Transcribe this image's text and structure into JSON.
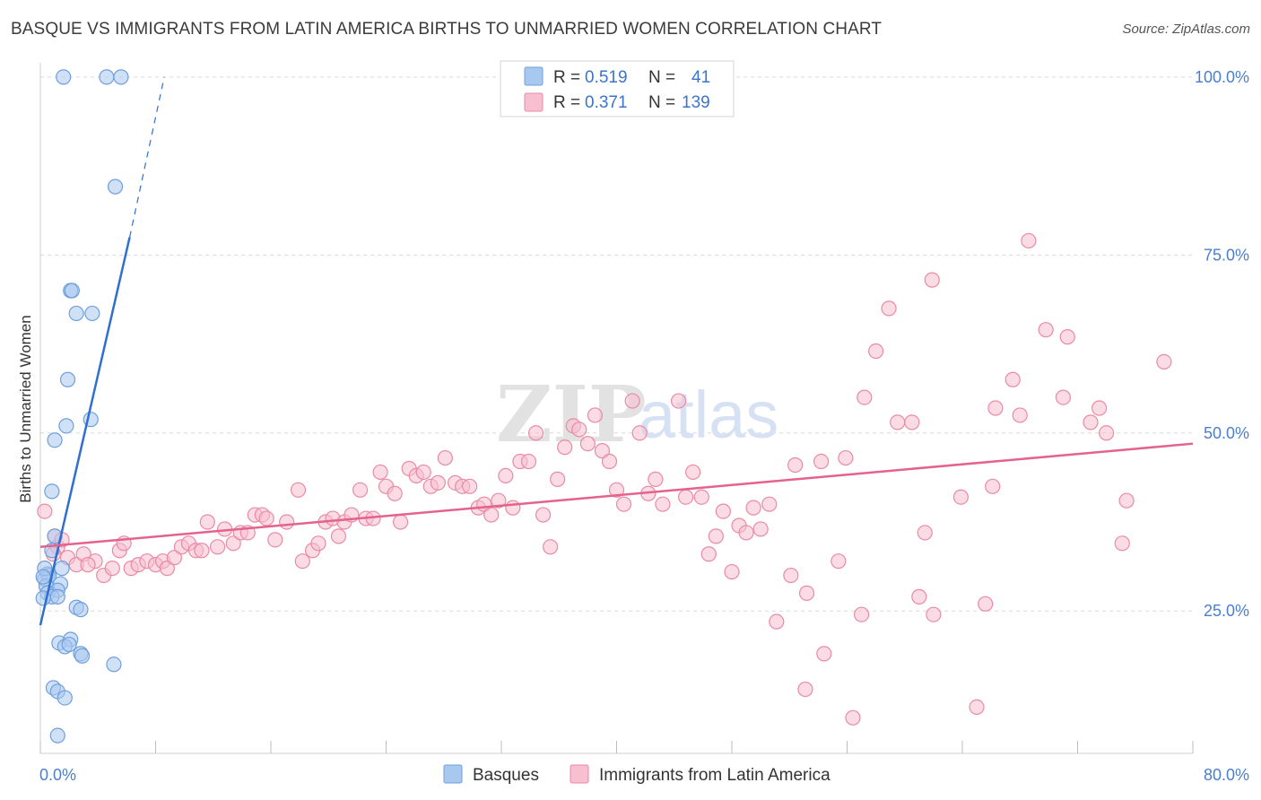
{
  "header": {
    "title": "BASQUE VS IMMIGRANTS FROM LATIN AMERICA BIRTHS TO UNMARRIED WOMEN CORRELATION CHART",
    "source": "Source: ZipAtlas.com"
  },
  "watermark": {
    "zip": "ZIP",
    "atlas": "atlas"
  },
  "colors": {
    "blue_fill": "#a9c8f0",
    "blue_stroke": "#6f9fdc",
    "blue_line": "#2f6fd0",
    "pink_fill": "#f7bfd0",
    "pink_stroke": "#e98aa8",
    "pink_line": "#e4628e",
    "grid": "#d9d9d9",
    "axis_label": "#4a7fd0"
  },
  "legend": {
    "rows": [
      {
        "r_label": "R = ",
        "r_value": "0.519",
        "n_label": "N = ",
        "n_value": "41"
      },
      {
        "r_label": "R = ",
        "r_value": "0.371",
        "n_label": "N = ",
        "n_value": "139"
      }
    ]
  },
  "chart_data": {
    "type": "scatter",
    "title": "BASQUE VS IMMIGRANTS FROM LATIN AMERICA BIRTHS TO UNMARRIED WOMEN CORRELATION CHART",
    "xlabel": "",
    "ylabel": "Births to Unmarried Women",
    "xlim": [
      0,
      80
    ],
    "ylim": [
      5,
      102
    ],
    "x_tick_labels": [
      "0.0%",
      "80.0%"
    ],
    "y_ticks": [
      25,
      50,
      75,
      100
    ],
    "y_tick_labels": [
      "25.0%",
      "50.0%",
      "75.0%",
      "100.0%"
    ],
    "grid": true,
    "legend_position": "top-center",
    "series": [
      {
        "name": "Basques",
        "r": 0.519,
        "n": 41,
        "trend": {
          "x_start": 0.0,
          "y_start": 23.0,
          "x_solid_end": 6.2,
          "y_solid_end": 77.5,
          "x_dash_end": 8.6,
          "y_dash_end": 100.0
        },
        "points": [
          [
            1.6,
            100.0
          ],
          [
            4.6,
            100.0
          ],
          [
            5.6,
            100.0
          ],
          [
            5.2,
            84.6
          ],
          [
            2.1,
            70.0
          ],
          [
            2.2,
            70.0
          ],
          [
            2.5,
            66.8
          ],
          [
            3.6,
            66.8
          ],
          [
            1.9,
            57.5
          ],
          [
            3.5,
            51.9
          ],
          [
            1.8,
            51.0
          ],
          [
            1.0,
            49.0
          ],
          [
            0.8,
            41.8
          ],
          [
            1.0,
            35.5
          ],
          [
            0.8,
            33.5
          ],
          [
            1.5,
            31.0
          ],
          [
            0.5,
            30.2
          ],
          [
            0.6,
            30.0
          ],
          [
            0.3,
            29.5
          ],
          [
            0.4,
            28.5
          ],
          [
            1.4,
            28.8
          ],
          [
            1.2,
            27.9
          ],
          [
            0.5,
            27.5
          ],
          [
            0.8,
            27.0
          ],
          [
            1.2,
            27.0
          ],
          [
            0.2,
            26.8
          ],
          [
            2.5,
            25.5
          ],
          [
            2.8,
            25.2
          ],
          [
            1.3,
            20.5
          ],
          [
            2.1,
            21.0
          ],
          [
            1.7,
            20.0
          ],
          [
            2.0,
            20.3
          ],
          [
            2.8,
            19.0
          ],
          [
            2.9,
            18.7
          ],
          [
            5.1,
            17.5
          ],
          [
            0.9,
            14.2
          ],
          [
            1.2,
            13.7
          ],
          [
            1.7,
            12.8
          ],
          [
            1.2,
            7.5
          ],
          [
            0.3,
            31.0
          ],
          [
            0.2,
            29.8
          ]
        ]
      },
      {
        "name": "Immigrants from Latin America",
        "r": 0.371,
        "n": 139,
        "trend": {
          "x_start": 0.0,
          "y_start": 34.0,
          "x_end": 80.0,
          "y_end": 48.5
        },
        "points": [
          [
            0.3,
            39.0
          ],
          [
            1.0,
            35.5
          ],
          [
            1.2,
            34.0
          ],
          [
            1.9,
            32.5
          ],
          [
            2.5,
            31.5
          ],
          [
            3.0,
            33.0
          ],
          [
            3.8,
            32.0
          ],
          [
            4.4,
            30.0
          ],
          [
            5.0,
            31.0
          ],
          [
            5.5,
            33.5
          ],
          [
            5.8,
            34.5
          ],
          [
            6.3,
            31.0
          ],
          [
            6.8,
            31.5
          ],
          [
            7.4,
            32.0
          ],
          [
            8.0,
            31.5
          ],
          [
            8.5,
            32.0
          ],
          [
            8.8,
            31.0
          ],
          [
            9.3,
            32.5
          ],
          [
            9.8,
            34.0
          ],
          [
            10.3,
            34.5
          ],
          [
            10.8,
            33.5
          ],
          [
            11.2,
            33.5
          ],
          [
            11.6,
            37.5
          ],
          [
            12.3,
            34.0
          ],
          [
            12.8,
            36.5
          ],
          [
            13.4,
            34.5
          ],
          [
            13.9,
            36.0
          ],
          [
            14.4,
            36.0
          ],
          [
            14.9,
            38.5
          ],
          [
            15.4,
            38.5
          ],
          [
            15.7,
            38.0
          ],
          [
            16.3,
            35.0
          ],
          [
            17.1,
            37.5
          ],
          [
            17.9,
            42.0
          ],
          [
            18.2,
            32.0
          ],
          [
            18.9,
            33.5
          ],
          [
            19.3,
            34.5
          ],
          [
            19.8,
            37.5
          ],
          [
            20.3,
            38.0
          ],
          [
            20.7,
            35.5
          ],
          [
            21.1,
            37.5
          ],
          [
            21.6,
            38.5
          ],
          [
            22.2,
            42.0
          ],
          [
            22.6,
            38.0
          ],
          [
            23.1,
            38.0
          ],
          [
            23.6,
            44.5
          ],
          [
            24.0,
            42.5
          ],
          [
            24.6,
            41.5
          ],
          [
            25.0,
            37.5
          ],
          [
            25.6,
            45.0
          ],
          [
            26.1,
            44.0
          ],
          [
            26.6,
            44.5
          ],
          [
            27.1,
            42.5
          ],
          [
            27.6,
            43.0
          ],
          [
            28.1,
            46.5
          ],
          [
            28.8,
            43.0
          ],
          [
            29.3,
            42.5
          ],
          [
            29.8,
            42.5
          ],
          [
            30.4,
            39.5
          ],
          [
            30.8,
            40.0
          ],
          [
            31.3,
            38.5
          ],
          [
            31.8,
            40.5
          ],
          [
            32.3,
            44.0
          ],
          [
            32.8,
            39.5
          ],
          [
            33.3,
            46.0
          ],
          [
            33.9,
            46.0
          ],
          [
            34.4,
            50.0
          ],
          [
            34.9,
            38.5
          ],
          [
            35.4,
            34.0
          ],
          [
            35.9,
            43.5
          ],
          [
            36.4,
            48.0
          ],
          [
            37.0,
            51.0
          ],
          [
            37.4,
            50.5
          ],
          [
            38.0,
            48.5
          ],
          [
            38.5,
            52.5
          ],
          [
            39.0,
            47.5
          ],
          [
            39.5,
            46.0
          ],
          [
            40.0,
            42.0
          ],
          [
            40.5,
            40.0
          ],
          [
            41.1,
            54.5
          ],
          [
            41.6,
            50.0
          ],
          [
            42.2,
            41.5
          ],
          [
            42.7,
            43.5
          ],
          [
            43.2,
            40.0
          ],
          [
            44.3,
            54.5
          ],
          [
            44.8,
            41.0
          ],
          [
            45.3,
            44.5
          ],
          [
            45.9,
            41.0
          ],
          [
            46.4,
            33.0
          ],
          [
            46.9,
            35.5
          ],
          [
            47.4,
            39.0
          ],
          [
            48.0,
            30.5
          ],
          [
            48.5,
            37.0
          ],
          [
            49.0,
            36.0
          ],
          [
            49.5,
            39.5
          ],
          [
            50.0,
            36.5
          ],
          [
            50.6,
            40.0
          ],
          [
            51.1,
            23.5
          ],
          [
            52.1,
            30.0
          ],
          [
            52.4,
            45.5
          ],
          [
            53.1,
            14.0
          ],
          [
            53.2,
            27.5
          ],
          [
            54.2,
            46.0
          ],
          [
            54.4,
            19.0
          ],
          [
            55.4,
            32.0
          ],
          [
            55.9,
            46.5
          ],
          [
            56.4,
            10.0
          ],
          [
            57.0,
            24.5
          ],
          [
            57.2,
            55.0
          ],
          [
            58.0,
            61.5
          ],
          [
            58.9,
            67.5
          ],
          [
            59.5,
            51.5
          ],
          [
            60.5,
            51.5
          ],
          [
            61.0,
            27.0
          ],
          [
            61.4,
            36.0
          ],
          [
            62.0,
            24.5
          ],
          [
            61.9,
            71.5
          ],
          [
            63.9,
            41.0
          ],
          [
            65.0,
            11.5
          ],
          [
            65.6,
            26.0
          ],
          [
            66.1,
            42.5
          ],
          [
            66.3,
            53.5
          ],
          [
            67.5,
            57.5
          ],
          [
            68.0,
            52.5
          ],
          [
            68.6,
            77.0
          ],
          [
            69.8,
            64.5
          ],
          [
            71.0,
            55.0
          ],
          [
            71.3,
            63.5
          ],
          [
            72.9,
            51.5
          ],
          [
            73.5,
            53.5
          ],
          [
            74.0,
            50.0
          ],
          [
            75.1,
            34.5
          ],
          [
            75.4,
            40.5
          ],
          [
            78.0,
            60.0
          ],
          [
            1.5,
            35.0
          ],
          [
            3.3,
            31.5
          ],
          [
            0.9,
            33.0
          ]
        ]
      }
    ]
  },
  "bottom_legend": {
    "items": [
      {
        "label": "Basques"
      },
      {
        "label": "Immigrants from Latin America"
      }
    ]
  }
}
